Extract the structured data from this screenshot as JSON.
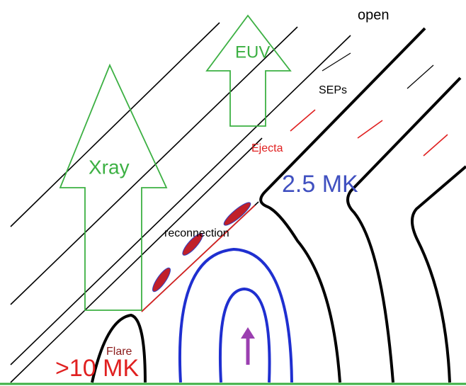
{
  "labels": {
    "open": "open",
    "euv": "EUV",
    "seps": "SEPs",
    "xray": "Xray",
    "ejecta": "Ejecta",
    "corona_temp": "2.5 MK",
    "reconnection": "reconnection",
    "flare": "Flare",
    "flare_temp": ">10 MK"
  }
}
